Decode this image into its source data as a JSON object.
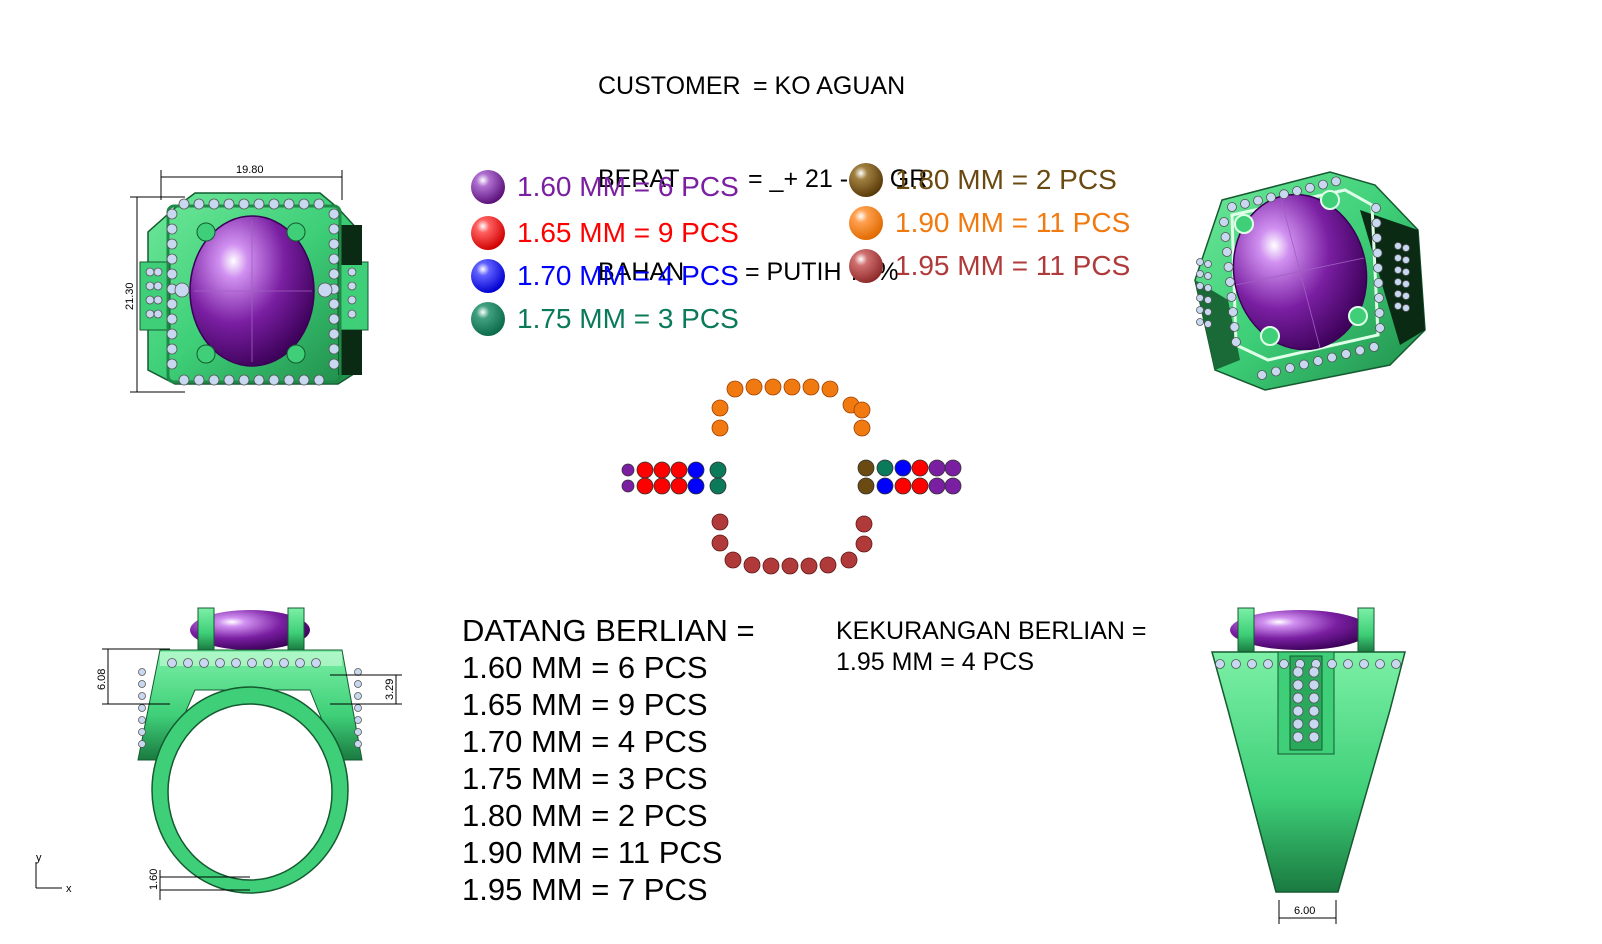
{
  "header": {
    "customer_label": "CUSTOMER",
    "customer_value": "= KO AGUAN",
    "berat_label": "BERAT",
    "berat_value": "= _+ 21 - 22 GR",
    "bahan_label": "BAHAN",
    "bahan_value": "= PUTIH 70%"
  },
  "legend": [
    {
      "label": "1.60 MM = 6 PCS",
      "color": "#7a1fa2"
    },
    {
      "label": "1.65 MM = 9 PCS",
      "color": "#ff0000"
    },
    {
      "label": "1.70 MM = 4 PCS",
      "color": "#0000ff"
    },
    {
      "label": "1.75 MM = 3 PCS",
      "color": "#0a7a5a"
    },
    {
      "label": "1.80 MM = 2 PCS",
      "color": "#6b4a12"
    },
    {
      "label": "1.90 MM = 11 PCS",
      "color": "#f07a10"
    },
    {
      "label": "1.95 MM = 11 PCS",
      "color": "#b03a3a"
    }
  ],
  "datang": {
    "title": "DATANG BERLIAN =",
    "lines": [
      "1.60 MM = 6 PCS",
      "1.65 MM = 9 PCS",
      "1.70 MM = 4 PCS",
      "1.75 MM = 3 PCS",
      "1.80 MM = 2 PCS",
      "1.90 MM = 11 PCS",
      "1.95 MM = 7 PCS"
    ]
  },
  "kekurangan": {
    "title": "KEKURANGAN BERLIAN =",
    "line": "1.95 MM = 4 PCS"
  },
  "dimensions": {
    "top_width": "19.80",
    "top_height": "21.30",
    "side_height": "6.08",
    "side_shoulder": "3.29",
    "band_bottom": "1.60",
    "back_width": "6.00"
  },
  "axis": {
    "y": "y",
    "x": "x"
  },
  "colors": {
    "metal": "#3ecf78",
    "metal_dark": "#1f8a47",
    "stone": "#7a1fa2",
    "diamond": "#c8d8f0"
  }
}
